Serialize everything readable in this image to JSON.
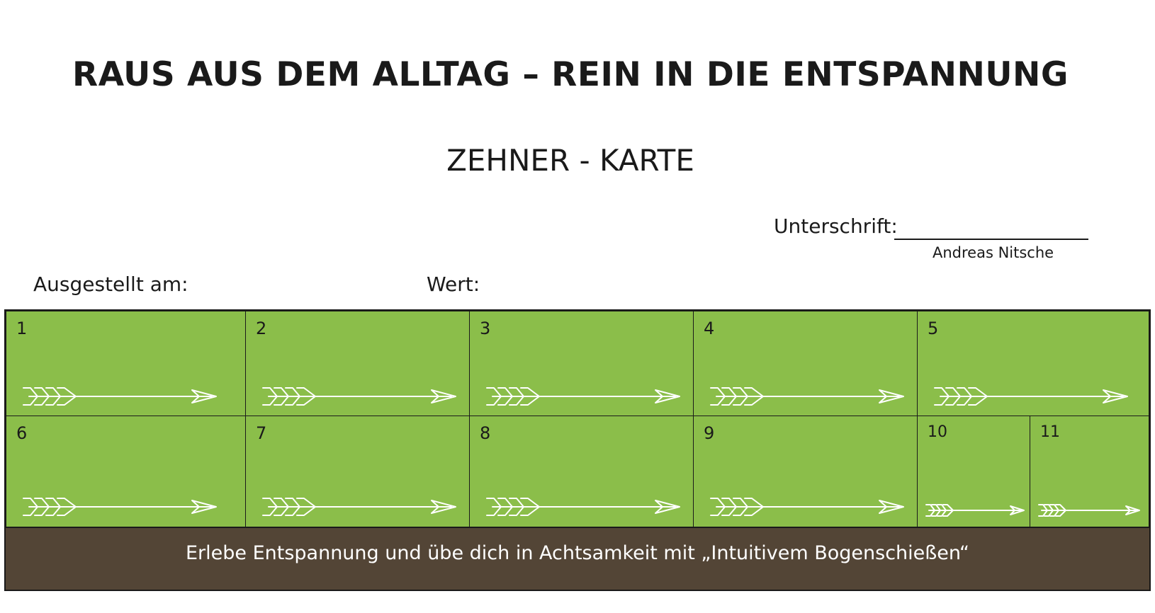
{
  "title": "RAUS AUS DEM ALLTAG – REIN IN DIE ENTSPANNUNG",
  "subtitle": "ZEHNER - KARTE",
  "signature": {
    "label": "Unterschrift:",
    "name": "Andreas Nitsche"
  },
  "issued_label": "Ausgestellt am:",
  "value_label": "Wert:",
  "cells": [
    "1",
    "2",
    "3",
    "4",
    "5",
    "6",
    "7",
    "8",
    "9",
    "10",
    "11"
  ],
  "footer_text": "Erlebe Entspannung und übe dich in Achtsamkeit mit „Intuitivem Bogenschießen“",
  "colors": {
    "cell_green": "#8bbe4a",
    "footer_brown": "#534536",
    "arrow": "#ffffff"
  },
  "icons": {
    "cell_arrow": "arrow-icon"
  }
}
